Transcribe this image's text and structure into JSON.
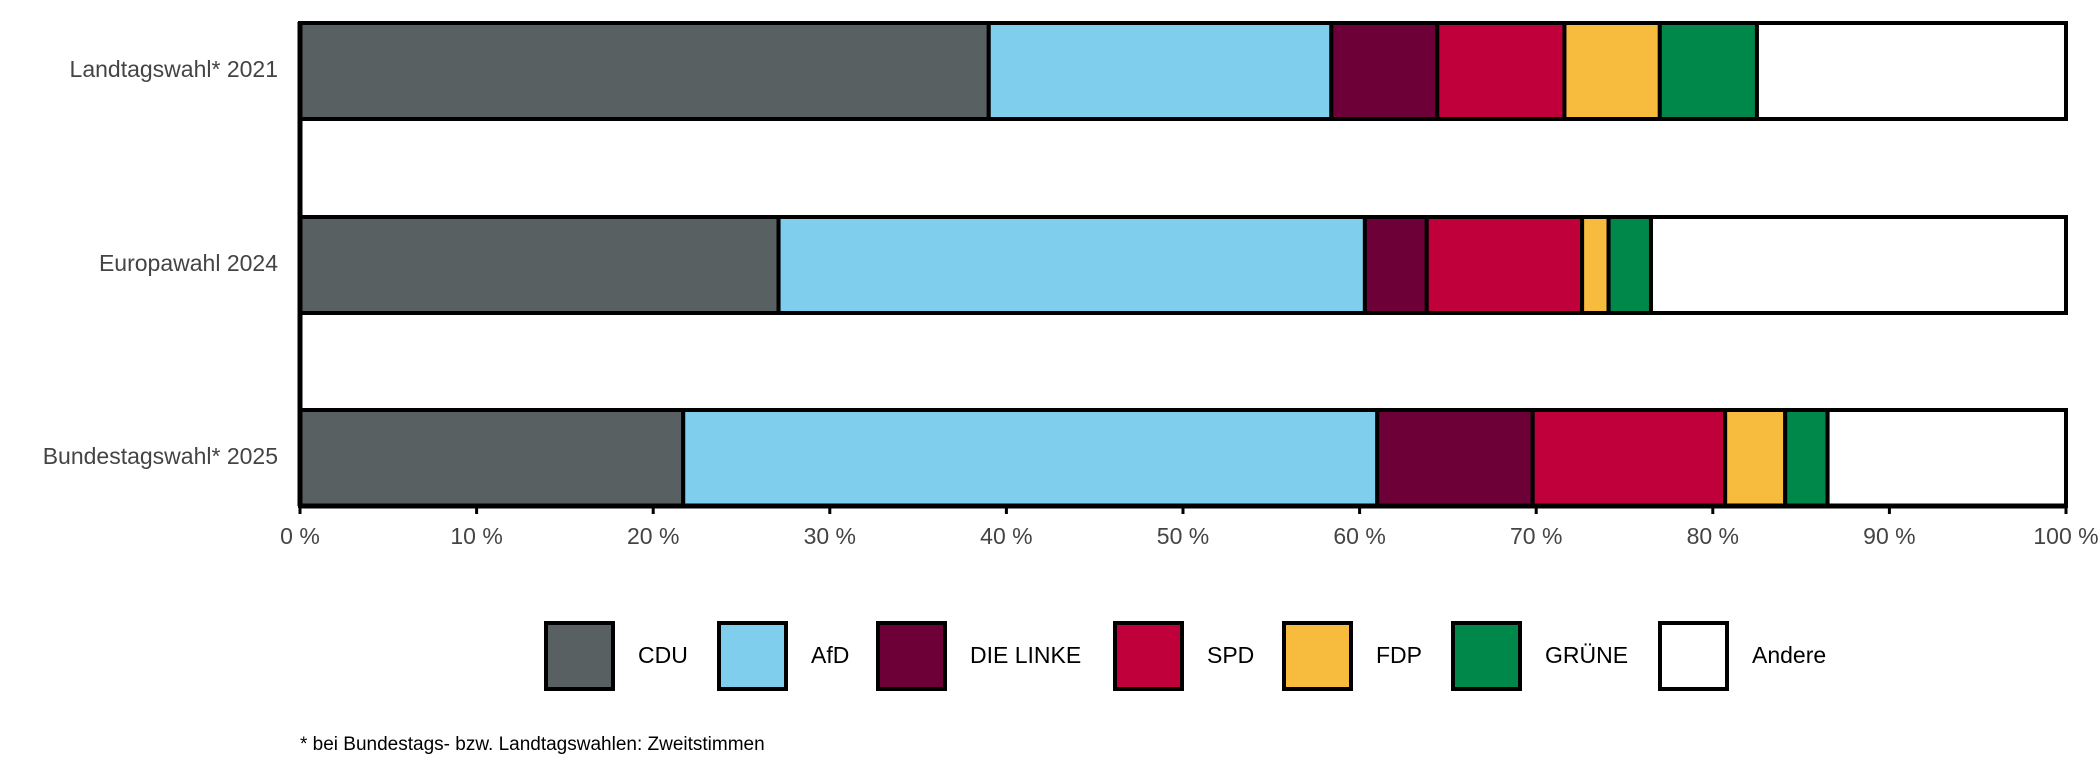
{
  "chart_data": {
    "type": "stacked-bar-horizontal",
    "categories": [
      "Landtagswahl* 2021",
      "Europawahl 2024",
      "Bundestagswahl* 2025"
    ],
    "series": [
      {
        "name": "CDU",
        "color": "#596062",
        "values": [
          39.0,
          27.1,
          21.7
        ]
      },
      {
        "name": "AfD",
        "color": "#80ceed",
        "values": [
          19.4,
          33.2,
          39.3
        ]
      },
      {
        "name": "DIE LINKE",
        "color": "#6e0038",
        "values": [
          6.0,
          3.5,
          8.8
        ]
      },
      {
        "name": "SPD",
        "color": "#c0003a",
        "values": [
          7.2,
          8.8,
          10.9
        ]
      },
      {
        "name": "FDP",
        "color": "#f7bc3d",
        "values": [
          5.4,
          1.5,
          3.4
        ]
      },
      {
        "name": "GRÜNE",
        "color": "#00884a",
        "values": [
          5.5,
          2.4,
          2.4
        ]
      },
      {
        "name": "Andere",
        "color": "#ffffff",
        "values": [
          17.5,
          23.5,
          13.5
        ]
      }
    ],
    "xlim": [
      0,
      100
    ],
    "xticks": [
      {
        "value": 0,
        "label": "0 %"
      },
      {
        "value": 10,
        "label": "10 %"
      },
      {
        "value": 20,
        "label": "20 %"
      },
      {
        "value": 30,
        "label": "30 %"
      },
      {
        "value": 40,
        "label": "40 %"
      },
      {
        "value": 50,
        "label": "50 %"
      },
      {
        "value": 60,
        "label": "60 %"
      },
      {
        "value": 70,
        "label": "70 %"
      },
      {
        "value": 80,
        "label": "80 %"
      },
      {
        "value": 90,
        "label": "90 %"
      },
      {
        "value": 100,
        "label": "100 %"
      }
    ],
    "note": "* bei Bundestags- bzw. Landtagswahlen: Zweitstimmen"
  }
}
